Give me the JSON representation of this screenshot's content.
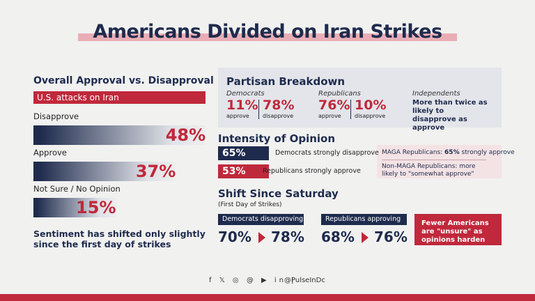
{
  "title": "Americans Divided on Iran Strikes",
  "approval": {
    "title": "Overall Approval vs. Disapproval",
    "subtitle": "U.S. attacks on Iran",
    "items": [
      {
        "name": "Disapprove",
        "value": 48,
        "label": "48%"
      },
      {
        "name": "Approve",
        "value": 37,
        "label": "37%"
      },
      {
        "name": "Not Sure / No Opinion",
        "value": 15,
        "label": "15%"
      }
    ],
    "note": "Sentiment has shifted only slightly since the first day of strikes"
  },
  "partisan": {
    "title": "Partisan Breakdown",
    "groups": [
      {
        "name": "Democrats",
        "approve": "11%",
        "approve_label": "approve",
        "disapprove": "78%",
        "disapprove_label": "disapprove"
      },
      {
        "name": "Republicans",
        "approve": "76%",
        "approve_label": "approve",
        "disapprove": "10%",
        "disapprove_label": "disapprove"
      }
    ],
    "independents": {
      "name": "Independents",
      "text": "More than twice as likely to disapprove as approve"
    }
  },
  "intensity": {
    "title": "Intensity of Opinion",
    "rows": [
      {
        "value": "65%",
        "text": "Democrats strongly disapprove"
      },
      {
        "value": "53%",
        "text": "Republicans strongly approve"
      }
    ],
    "maga": [
      "MAGA Republicans:",
      "65%",
      "strongly approve"
    ],
    "non_maga": "Non-MAGA Republicans: more likely to \"somewhat approve\""
  },
  "shift": {
    "title": "Shift Since Saturday",
    "subtitle": "(First Day of Strikes)",
    "groups": [
      {
        "name": "Democrats disapproving",
        "from": "70%",
        "to": "78%"
      },
      {
        "name": "Republicans approving",
        "from": "68%",
        "to": "76%"
      }
    ],
    "callout": "Fewer Americans are \"unsure\" as opinions harden"
  },
  "footer": {
    "handle": "@PulseInDc"
  }
}
